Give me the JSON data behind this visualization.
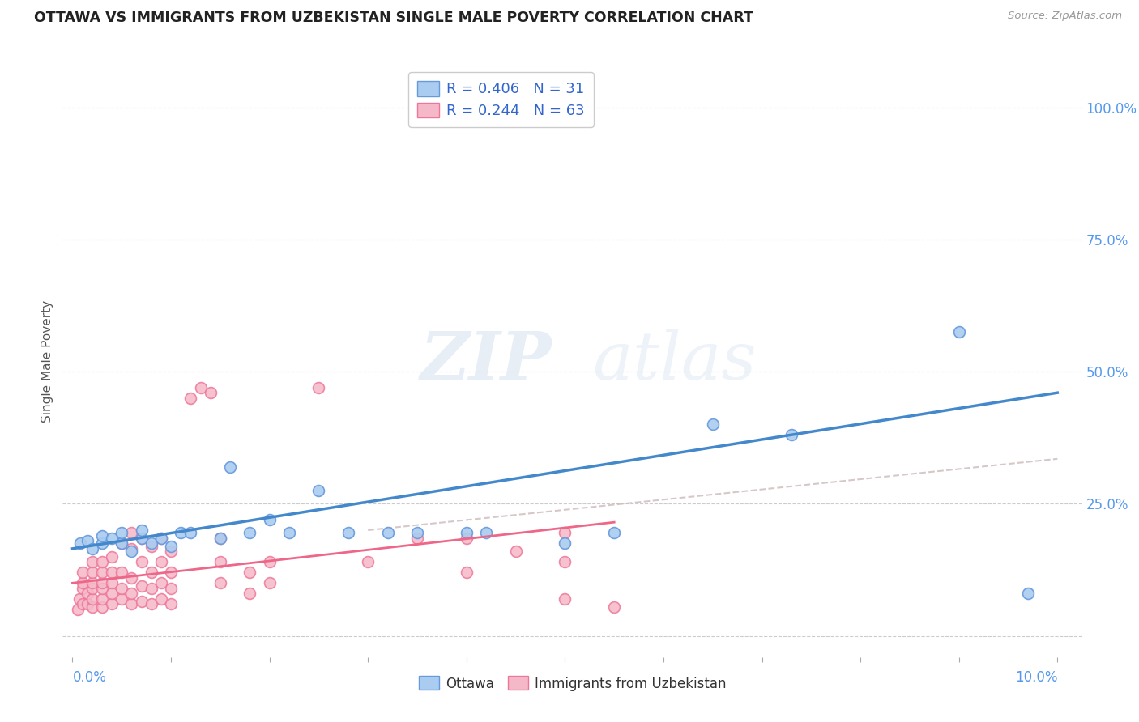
{
  "title": "OTTAWA VS IMMIGRANTS FROM UZBEKISTAN SINGLE MALE POVERTY CORRELATION CHART",
  "source": "Source: ZipAtlas.com",
  "ylabel": "Single Male Poverty",
  "yticks": [
    0.0,
    0.25,
    0.5,
    0.75,
    1.0
  ],
  "ytick_labels": [
    "",
    "25.0%",
    "50.0%",
    "75.0%",
    "100.0%"
  ],
  "blue_color": "#aaccf0",
  "pink_color": "#f5b8c8",
  "blue_edge_color": "#6699dd",
  "pink_edge_color": "#ee7799",
  "blue_line_color": "#4488cc",
  "pink_line_color": "#ee6688",
  "dashed_line_color": "#ccbbbb",
  "background_color": "#ffffff",
  "watermark_zip": "ZIP",
  "watermark_atlas": "atlas",
  "blue_scatter": [
    [
      0.0008,
      0.175
    ],
    [
      0.0015,
      0.18
    ],
    [
      0.002,
      0.165
    ],
    [
      0.003,
      0.175
    ],
    [
      0.003,
      0.19
    ],
    [
      0.004,
      0.185
    ],
    [
      0.005,
      0.175
    ],
    [
      0.005,
      0.195
    ],
    [
      0.006,
      0.16
    ],
    [
      0.007,
      0.185
    ],
    [
      0.007,
      0.2
    ],
    [
      0.008,
      0.175
    ],
    [
      0.009,
      0.185
    ],
    [
      0.01,
      0.17
    ],
    [
      0.011,
      0.195
    ],
    [
      0.012,
      0.195
    ],
    [
      0.015,
      0.185
    ],
    [
      0.016,
      0.32
    ],
    [
      0.018,
      0.195
    ],
    [
      0.02,
      0.22
    ],
    [
      0.022,
      0.195
    ],
    [
      0.025,
      0.275
    ],
    [
      0.028,
      0.195
    ],
    [
      0.032,
      0.195
    ],
    [
      0.035,
      0.195
    ],
    [
      0.04,
      0.195
    ],
    [
      0.042,
      0.195
    ],
    [
      0.05,
      0.175
    ],
    [
      0.055,
      0.195
    ],
    [
      0.065,
      0.4
    ],
    [
      0.073,
      0.38
    ],
    [
      0.09,
      0.575
    ],
    [
      0.097,
      0.08
    ]
  ],
  "pink_scatter": [
    [
      0.0005,
      0.05
    ],
    [
      0.0007,
      0.07
    ],
    [
      0.001,
      0.06
    ],
    [
      0.001,
      0.09
    ],
    [
      0.001,
      0.1
    ],
    [
      0.001,
      0.12
    ],
    [
      0.0015,
      0.06
    ],
    [
      0.0015,
      0.08
    ],
    [
      0.002,
      0.055
    ],
    [
      0.002,
      0.07
    ],
    [
      0.002,
      0.09
    ],
    [
      0.002,
      0.1
    ],
    [
      0.002,
      0.12
    ],
    [
      0.002,
      0.14
    ],
    [
      0.003,
      0.055
    ],
    [
      0.003,
      0.07
    ],
    [
      0.003,
      0.09
    ],
    [
      0.003,
      0.1
    ],
    [
      0.003,
      0.12
    ],
    [
      0.003,
      0.14
    ],
    [
      0.004,
      0.06
    ],
    [
      0.004,
      0.08
    ],
    [
      0.004,
      0.1
    ],
    [
      0.004,
      0.12
    ],
    [
      0.004,
      0.15
    ],
    [
      0.005,
      0.07
    ],
    [
      0.005,
      0.09
    ],
    [
      0.005,
      0.12
    ],
    [
      0.005,
      0.175
    ],
    [
      0.006,
      0.06
    ],
    [
      0.006,
      0.08
    ],
    [
      0.006,
      0.11
    ],
    [
      0.006,
      0.165
    ],
    [
      0.006,
      0.195
    ],
    [
      0.007,
      0.065
    ],
    [
      0.007,
      0.095
    ],
    [
      0.007,
      0.14
    ],
    [
      0.007,
      0.185
    ],
    [
      0.008,
      0.06
    ],
    [
      0.008,
      0.09
    ],
    [
      0.008,
      0.12
    ],
    [
      0.008,
      0.17
    ],
    [
      0.009,
      0.07
    ],
    [
      0.009,
      0.1
    ],
    [
      0.009,
      0.14
    ],
    [
      0.009,
      0.185
    ],
    [
      0.01,
      0.06
    ],
    [
      0.01,
      0.09
    ],
    [
      0.01,
      0.12
    ],
    [
      0.01,
      0.16
    ],
    [
      0.012,
      0.45
    ],
    [
      0.013,
      0.47
    ],
    [
      0.014,
      0.46
    ],
    [
      0.015,
      0.1
    ],
    [
      0.015,
      0.14
    ],
    [
      0.015,
      0.185
    ],
    [
      0.018,
      0.08
    ],
    [
      0.018,
      0.12
    ],
    [
      0.02,
      0.1
    ],
    [
      0.02,
      0.14
    ],
    [
      0.025,
      0.47
    ],
    [
      0.03,
      0.14
    ],
    [
      0.035,
      0.185
    ],
    [
      0.04,
      0.12
    ],
    [
      0.04,
      0.185
    ],
    [
      0.045,
      0.16
    ],
    [
      0.05,
      0.195
    ],
    [
      0.05,
      0.14
    ],
    [
      0.05,
      0.07
    ],
    [
      0.055,
      0.055
    ]
  ],
  "blue_line": {
    "x0": 0.0,
    "x1": 0.1,
    "y0": 0.165,
    "y1": 0.46
  },
  "pink_line": {
    "x0": 0.0,
    "x1": 0.055,
    "y0": 0.1,
    "y1": 0.215
  },
  "dashed_line": {
    "x0": 0.03,
    "x1": 0.1,
    "y0": 0.2,
    "y1": 0.335
  },
  "xlim": [
    -0.001,
    0.1025
  ],
  "ylim": [
    -0.04,
    1.08
  ]
}
